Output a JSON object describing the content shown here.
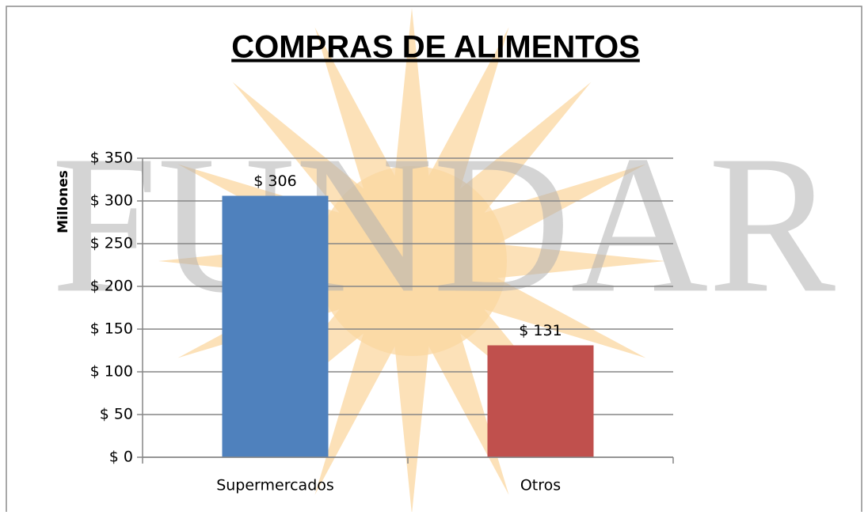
{
  "chart_data": {
    "type": "bar",
    "title": "COMPRAS DE ALIMENTOS",
    "y_label": "Millones",
    "watermark": "FUNDAR",
    "categories": [
      "Supermercados",
      "Otros"
    ],
    "values": [
      306,
      131
    ],
    "value_labels": [
      "$ 306",
      "$ 131"
    ],
    "colors": [
      "#4f81bd",
      "#c0504d"
    ],
    "ylim": [
      0,
      350
    ],
    "yticks": [
      {
        "value": 0,
        "label": "$ 0"
      },
      {
        "value": 50,
        "label": "$ 50"
      },
      {
        "value": 100,
        "label": "$ 100"
      },
      {
        "value": 150,
        "label": "$ 150"
      },
      {
        "value": 200,
        "label": "$ 200"
      },
      {
        "value": 250,
        "label": "$ 250"
      },
      {
        "value": 300,
        "label": "$ 300"
      },
      {
        "value": 350,
        "label": "$ 350"
      }
    ],
    "grid": true
  }
}
